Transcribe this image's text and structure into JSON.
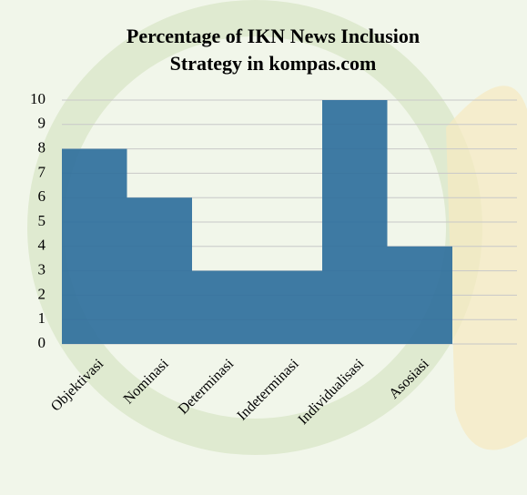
{
  "chart_data": {
    "type": "bar",
    "title": [
      "Percentage of IKN News Inclusion",
      "Strategy in kompas.com"
    ],
    "categories": [
      "Objektivasi",
      "Nominasi",
      "Determinasi",
      "Indeterminasi",
      "Individualisasi",
      "Asosiasi"
    ],
    "values": [
      8,
      6,
      3,
      3,
      10,
      4
    ],
    "color": "#2f6f9c",
    "ylim": [
      0,
      10
    ],
    "yticks": [
      0,
      1,
      2,
      3,
      4,
      5,
      6,
      7,
      8,
      9,
      10
    ],
    "grid": true
  }
}
